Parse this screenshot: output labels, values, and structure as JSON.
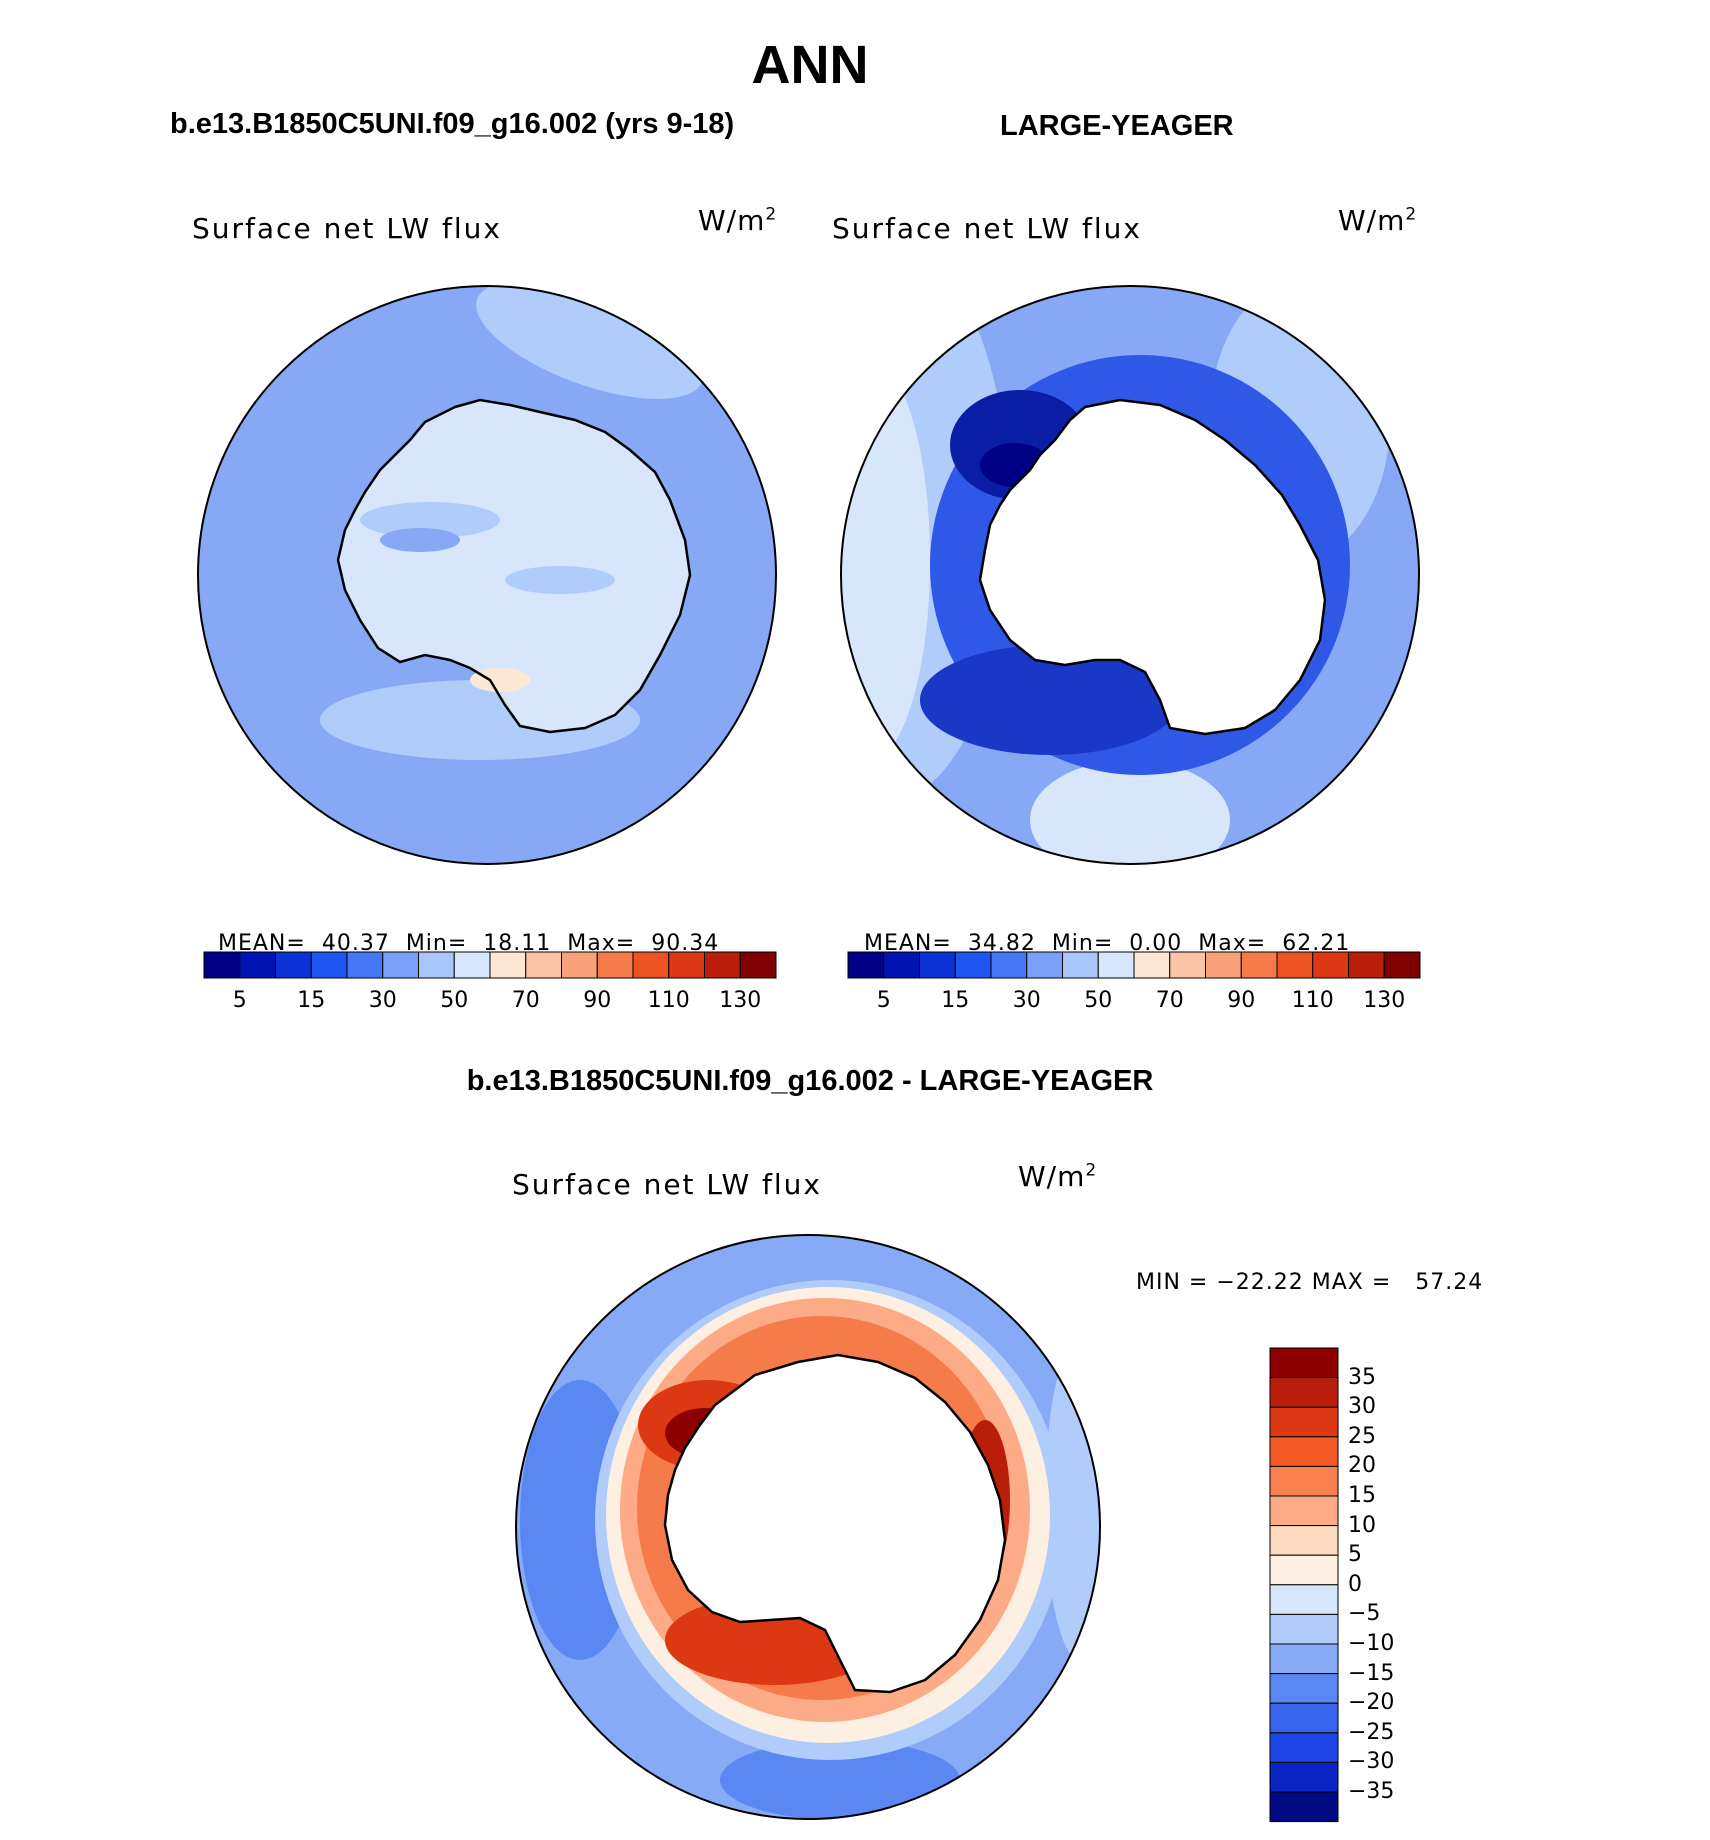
{
  "title": "ANN",
  "panels": [
    {
      "case": "b.e13.B1850C5UNI.f09_g16.002 (yrs 9-18)",
      "variable": "Surface net LW flux",
      "unit_base": "W/m",
      "unit_exp": "2",
      "mean_label": "MEAN=",
      "mean": "40.37",
      "min_label": "Min=",
      "min": "18.11",
      "max_label": "Max=",
      "max": "90.34"
    },
    {
      "case": "LARGE-YEAGER",
      "variable": "Surface net LW flux",
      "unit_base": "W/m",
      "unit_exp": "2",
      "mean_label": "MEAN=",
      "mean": "34.82",
      "min_label": "Min=",
      "min": "0.00",
      "max_label": "Max=",
      "max": "62.21"
    }
  ],
  "abs_colorbar": {
    "colors": [
      "#000087",
      "#0014b4",
      "#0a32d7",
      "#1e55f0",
      "#4678f5",
      "#7aa0f7",
      "#a8c6fa",
      "#d6e6fc",
      "#fde8d6",
      "#fcc5a8",
      "#f9a27a",
      "#f57b4b",
      "#ee5324",
      "#dc3814",
      "#b81e0a",
      "#7f0000"
    ],
    "tick_labels": [
      "5",
      "15",
      "30",
      "50",
      "70",
      "90",
      "110",
      "130"
    ]
  },
  "difference": {
    "case": "b.e13.B1850C5UNI.f09_g16.002 - LARGE-YEAGER",
    "variable": "Surface net LW flux",
    "unit_base": "W/m",
    "unit_exp": "2",
    "minmax": "MIN = −22.22 MAX =   57.24",
    "colors_top_to_bottom": [
      "#8c0000",
      "#b81e0a",
      "#dc3814",
      "#f55a24",
      "#f9804f",
      "#fcab86",
      "#fdd9bd",
      "#fdefe1",
      "#d6e6fc",
      "#afccfa",
      "#86aaf6",
      "#5a87f2",
      "#3864ee",
      "#1e46e6",
      "#0a24c3",
      "#000a82"
    ],
    "labels_top_to_bottom": [
      "35",
      "30",
      "25",
      "20",
      "15",
      "10",
      "5",
      "0",
      "−5",
      "−10",
      "−15",
      "−20",
      "−25",
      "−30",
      "−35"
    ]
  }
}
